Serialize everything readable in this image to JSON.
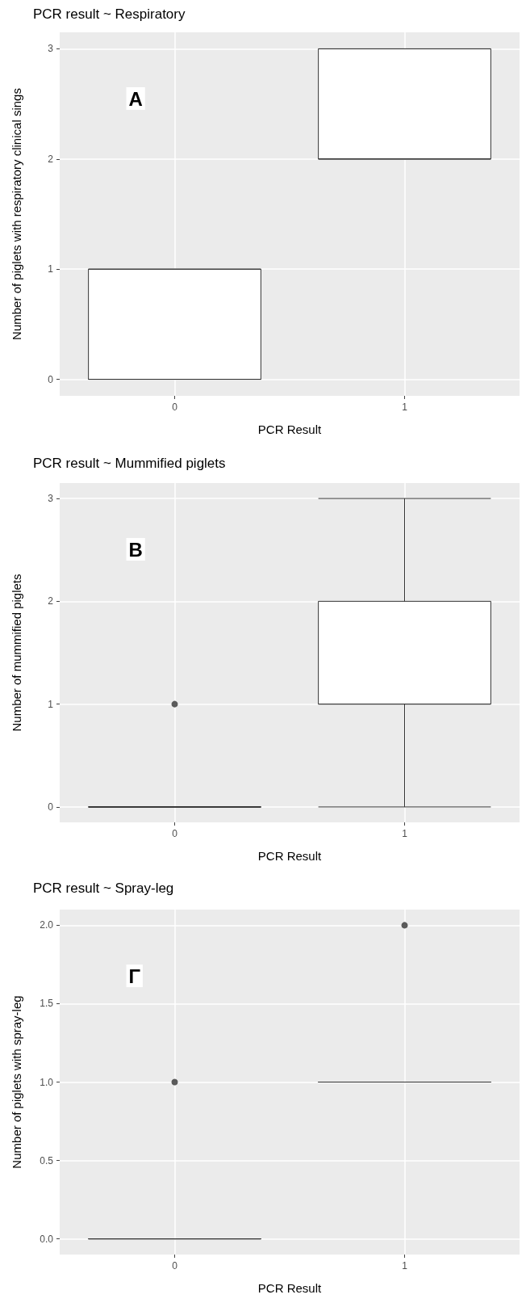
{
  "chart_data": [
    {
      "type": "box",
      "title": "PCR result ~ Respiratory",
      "xlabel": "PCR Result",
      "ylabel": "Number of piglets with respiratory clinical sings",
      "categories": [
        "0",
        "1"
      ],
      "boxes": [
        {
          "low": 0,
          "q1": 0,
          "median": 0,
          "q3": 1,
          "high": 1
        },
        {
          "low": 2,
          "q1": 2,
          "median": 2,
          "q3": 3,
          "high": 3
        }
      ],
      "ylim": [
        -0.15,
        3.15
      ],
      "yticks": [
        0,
        1,
        2,
        3
      ],
      "grid": true,
      "annotations": [
        "A"
      ]
    },
    {
      "type": "box",
      "title": "PCR result ~ Mummified piglets",
      "xlabel": "PCR Result",
      "ylabel": "Number of mummified piglets",
      "categories": [
        "0",
        "1"
      ],
      "boxes": [
        {
          "low": 0,
          "q1": 0,
          "median": 0,
          "q3": 0,
          "high": 0,
          "outliers": [
            1
          ]
        },
        {
          "low": 0,
          "q1": 1,
          "median": 1,
          "q3": 2,
          "high": 3
        }
      ],
      "ylim": [
        -0.15,
        3.15
      ],
      "yticks": [
        0,
        1,
        2,
        3
      ],
      "grid": true,
      "annotations": [
        "B"
      ]
    },
    {
      "type": "box",
      "title": "PCR result ~ Spray-leg",
      "xlabel": "PCR Result",
      "ylabel": "Number of piglets with spray-leg",
      "categories": [
        "0",
        "1"
      ],
      "boxes": [
        {
          "low": 0,
          "q1": 0,
          "median": 0,
          "q3": 0,
          "high": 0,
          "outliers": [
            1
          ]
        },
        {
          "low": 1,
          "q1": 1,
          "median": 1,
          "q3": 1,
          "high": 1,
          "outliers": [
            2
          ]
        }
      ],
      "ylim": [
        -0.1,
        2.1
      ],
      "yticks": [
        {
          "value": 0,
          "label": "0.0"
        },
        {
          "value": 0.5,
          "label": "0.5"
        },
        {
          "value": 1,
          "label": "1.0"
        },
        {
          "value": 1.5,
          "label": "1.5"
        },
        {
          "value": 2,
          "label": "2.0"
        }
      ],
      "grid": true,
      "annotations": [
        "Γ"
      ]
    }
  ]
}
